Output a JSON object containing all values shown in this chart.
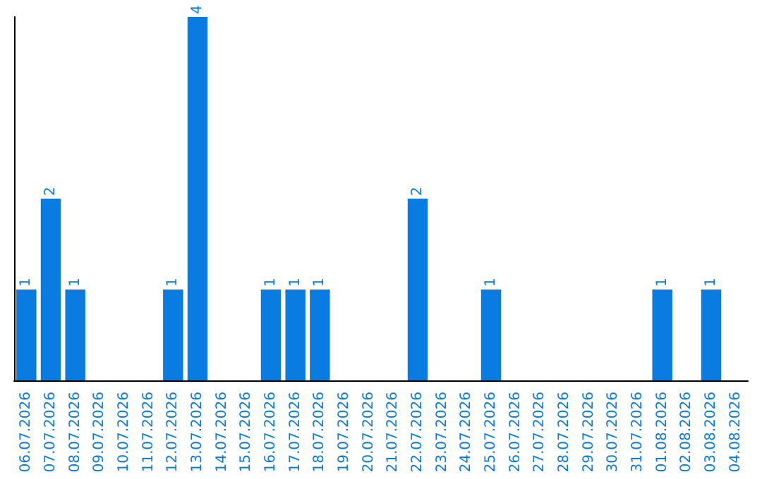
{
  "chart_data": {
    "type": "bar",
    "categories": [
      "06.07.2026",
      "07.07.2026",
      "08.07.2026",
      "09.07.2026",
      "10.07.2026",
      "11.07.2026",
      "12.07.2026",
      "13.07.2026",
      "14.07.2026",
      "15.07.2026",
      "16.07.2026",
      "17.07.2026",
      "18.07.2026",
      "19.07.2026",
      "20.07.2026",
      "21.07.2026",
      "22.07.2026",
      "23.07.2026",
      "24.07.2026",
      "25.07.2026",
      "26.07.2026",
      "27.07.2026",
      "28.07.2026",
      "29.07.2026",
      "30.07.2026",
      "31.07.2026",
      "01.08.2026",
      "02.08.2026",
      "03.08.2026",
      "04.08.2026"
    ],
    "values": [
      1,
      2,
      1,
      0,
      0,
      0,
      1,
      4,
      0,
      0,
      1,
      1,
      1,
      0,
      0,
      0,
      2,
      0,
      0,
      1,
      0,
      0,
      0,
      0,
      0,
      0,
      1,
      0,
      1,
      0
    ],
    "value_labels": [
      "1",
      "2",
      "1",
      null,
      null,
      null,
      "1",
      "4",
      null,
      null,
      "1",
      "1",
      "1",
      null,
      null,
      null,
      "2",
      null,
      null,
      "1",
      null,
      null,
      null,
      null,
      null,
      null,
      "1",
      null,
      "1",
      null
    ],
    "color": "#0a7be0"
  }
}
